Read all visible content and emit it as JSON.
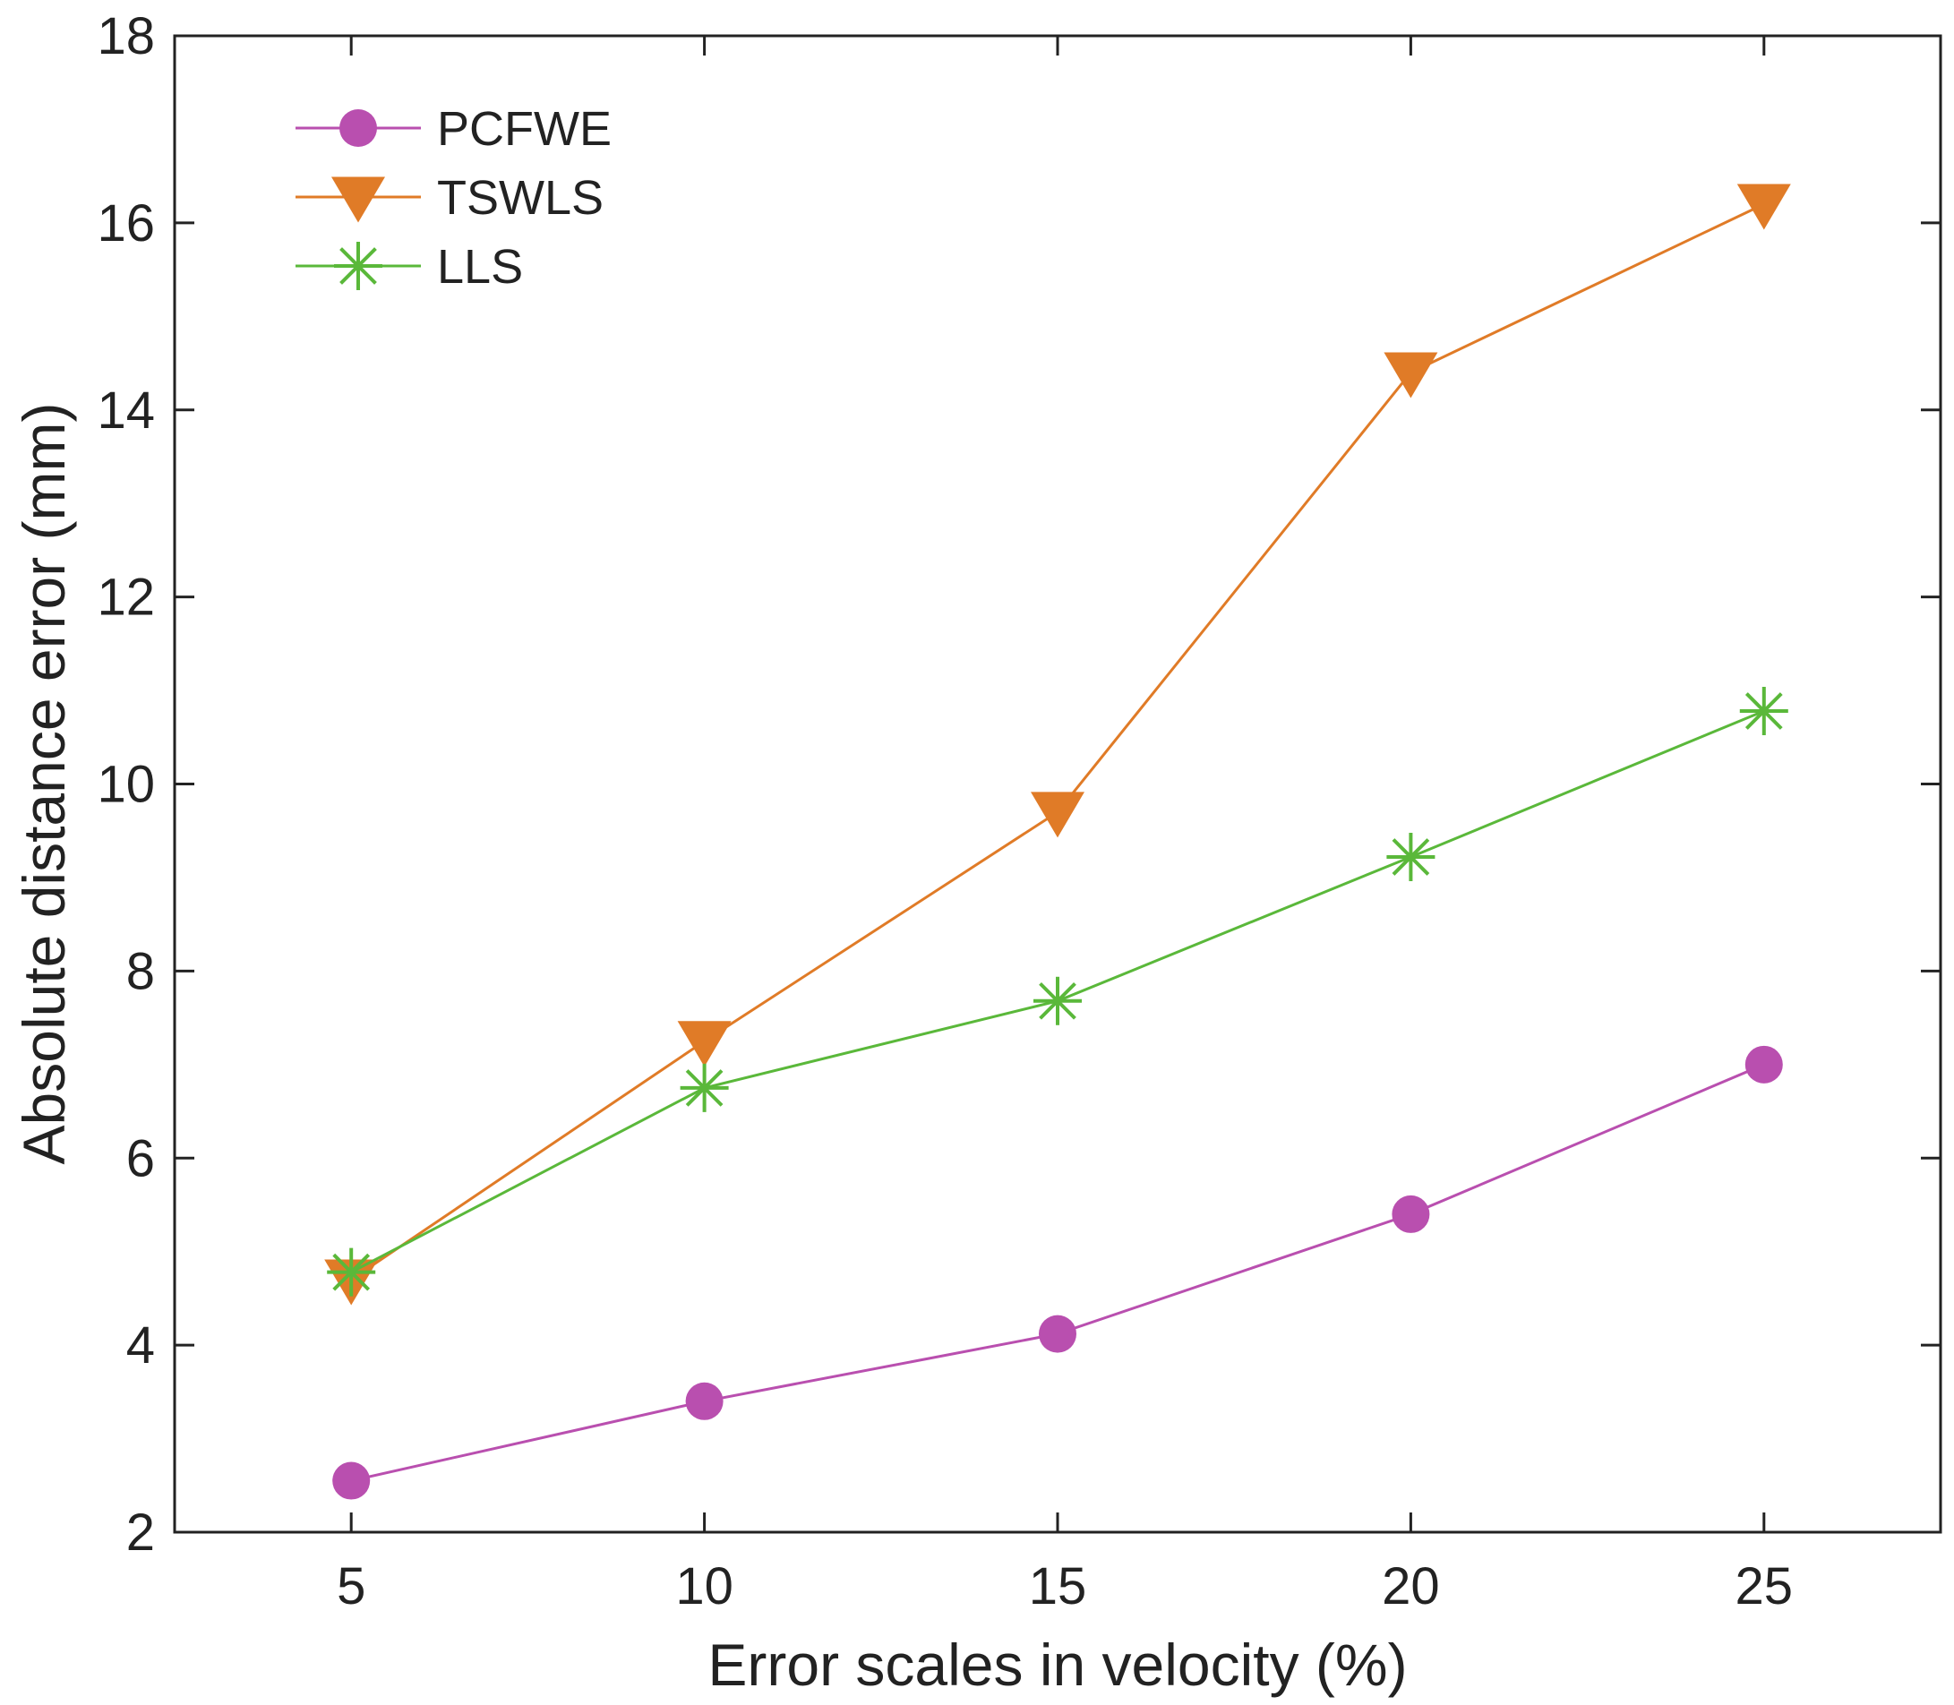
{
  "chart_data": {
    "type": "line",
    "title": "",
    "xlabel": "Error scales in velocity (%)",
    "ylabel": "Absolute distance error (mm)",
    "x": [
      5,
      10,
      15,
      20,
      25
    ],
    "xlim": [
      2.5,
      27.5
    ],
    "ylim": [
      2,
      18
    ],
    "xticks": [
      5,
      10,
      15,
      20,
      25
    ],
    "yticks": [
      2,
      4,
      6,
      8,
      10,
      12,
      14,
      16,
      18
    ],
    "legend_position": "top-left",
    "grid": false,
    "series": [
      {
        "name": "PCFWE",
        "color": "#b94faf",
        "marker": "circle",
        "values": [
          2.55,
          3.4,
          4.12,
          5.4,
          7.0
        ]
      },
      {
        "name": "TSWLS",
        "color": "#e07b27",
        "marker": "triangle-down",
        "values": [
          4.7,
          7.25,
          9.7,
          14.4,
          16.2
        ]
      },
      {
        "name": "LLS",
        "color": "#5ab83a",
        "marker": "asterisk",
        "values": [
          4.78,
          6.75,
          7.68,
          9.22,
          10.78
        ]
      }
    ]
  }
}
